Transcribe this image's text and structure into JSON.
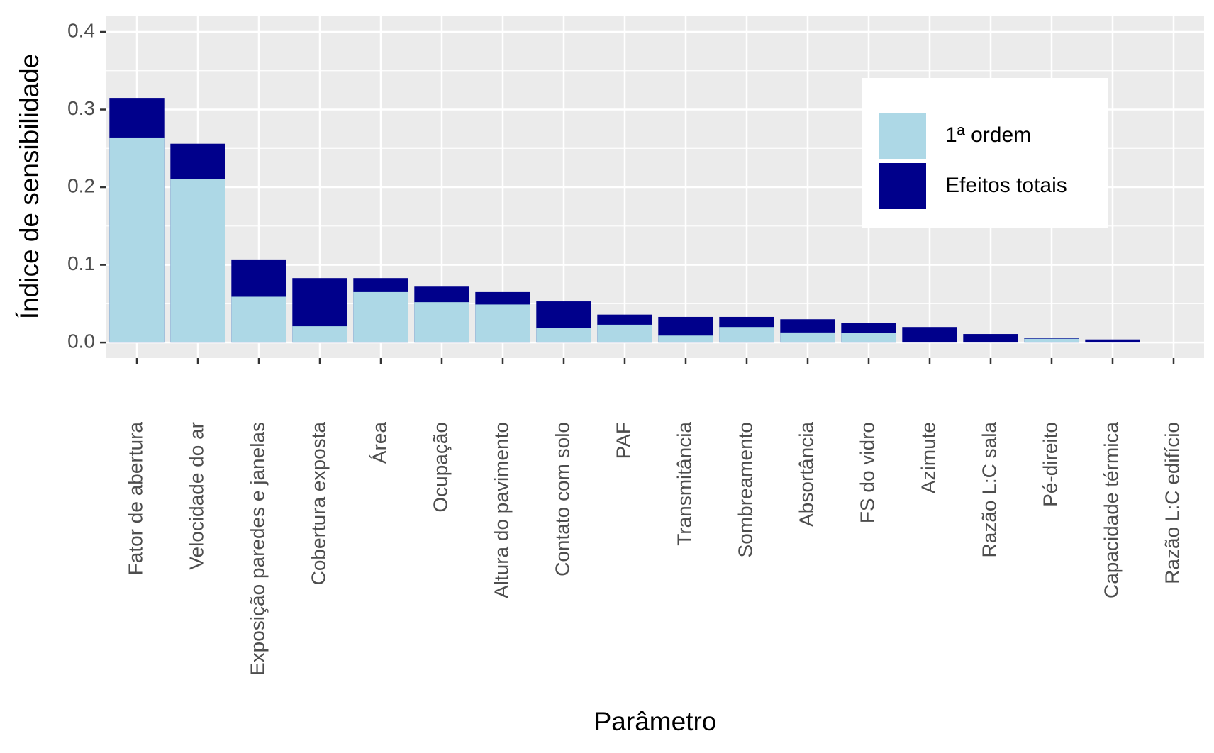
{
  "chart_data": {
    "type": "bar",
    "barmode": "overlay",
    "x_label": "Parâmetro",
    "y_label": "Índice de sensibilidade",
    "categories": [
      "Fator de abertura",
      "Velocidade do ar",
      "Exposição paredes e janelas",
      "Cobertura exposta",
      "Área",
      "Ocupação",
      "Altura do pavimento",
      "Contato com solo",
      "PAF",
      "Transmitância",
      "Sombreamento",
      "Absortância",
      "FS do vidro",
      "Azimute",
      "Razão L:C sala",
      "Pé-direito",
      "Capacidade térmica",
      "Razão L:C edifício"
    ],
    "series": [
      {
        "name": "1ª ordem",
        "color": "#add8e6",
        "values": [
          0.264,
          0.211,
          0.059,
          0.021,
          0.065,
          0.052,
          0.049,
          0.019,
          0.023,
          0.009,
          0.02,
          0.013,
          0.012,
          0,
          0,
          0.005,
          0,
          0
        ]
      },
      {
        "name": "Efeitos totais",
        "color": "#00008b",
        "values": [
          0.315,
          0.256,
          0.107,
          0.083,
          0.083,
          0.072,
          0.065,
          0.053,
          0.036,
          0.033,
          0.033,
          0.03,
          0.025,
          0.02,
          0.011,
          0.006,
          0.004,
          0
        ]
      }
    ],
    "ylim": [
      -0.02,
      0.421
    ],
    "yticks": [
      {
        "value": 0,
        "label": "0.0"
      },
      0.1,
      0.2,
      0.3,
      0.4
    ],
    "grid": true,
    "legend": "top-right"
  }
}
